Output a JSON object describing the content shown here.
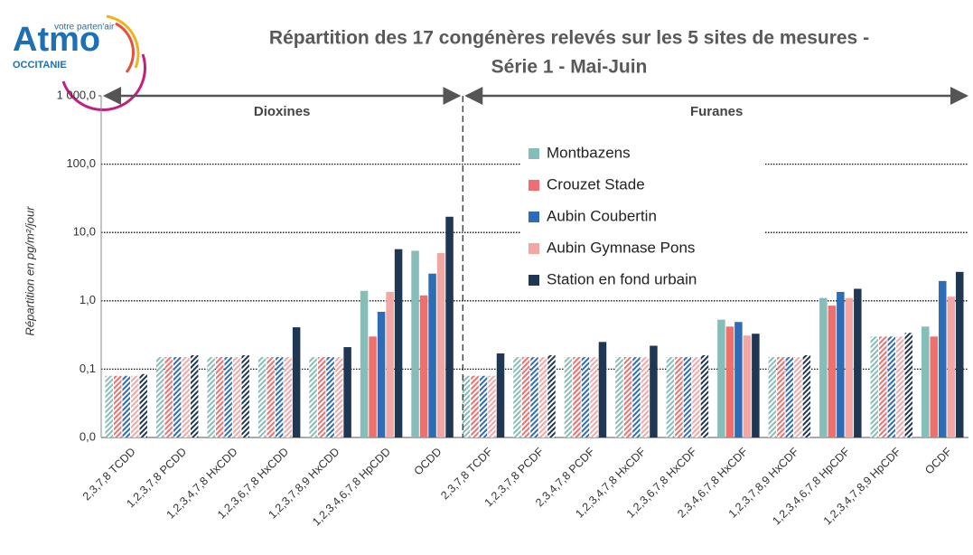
{
  "logo": {
    "name": "Atmo",
    "tagline": "votre parten'air",
    "region": "OCCITANIE"
  },
  "chart_data": {
    "type": "bar",
    "title": [
      "Répartition des 17 congénères relevés sur les 5 sites de mesures -",
      "Série 1 - Mai-Juin"
    ],
    "y_label": "Répartition en pg/m²/jour",
    "annotations": [
      "Dioxines",
      "Furanes"
    ],
    "log_scale": true,
    "grid": true,
    "legend": "center right",
    "ylim": [
      0.01,
      1000
    ],
    "yticks": [
      {
        "value": 0.01,
        "label": "0,0"
      },
      {
        "value": 0.1,
        "label": "0,1"
      },
      {
        "value": 1,
        "label": "1,0"
      },
      {
        "value": 10,
        "label": "10,0"
      },
      {
        "value": 100,
        "label": "100,0"
      },
      {
        "value": 1000,
        "label": "1 000,0"
      }
    ],
    "categories": [
      "2,3,7,8 TCDD",
      "1,2,3,7,8 PCDD",
      "1,2,3,4,7,8 HxCDD",
      "1,2,3,6,7,8 HxCDD",
      "1,2,3,7,8,9 HxCDD",
      "1,2,3,4,6,7,8 HpCDD",
      "OCDD",
      "2,3,7,8 TCDF",
      "1,2,3,7,8 PCDF",
      "2,3,4,7,8 PCDF",
      "1,2,3,4,7,8 HxCDF",
      "1,2,3,6,7,8 HxCDF",
      "2,3,4,6,7,8 HxCDF",
      "1,2,3,7,8,9 HxCDF",
      "1,2,3,4,6,7,8 HpCDF",
      "1,2,3,4,7,8,9 HpCDF",
      "OCDF"
    ],
    "series": [
      {
        "name": "Montbazens",
        "color": "#86bdb8",
        "values": [
          0.08,
          0.15,
          0.15,
          0.15,
          0.15,
          1.4,
          5.4,
          0.08,
          0.15,
          0.15,
          0.15,
          0.15,
          0.53,
          0.15,
          1.1,
          0.3,
          0.42
        ],
        "hatched": [
          true,
          true,
          true,
          true,
          true,
          false,
          false,
          true,
          true,
          true,
          true,
          true,
          false,
          true,
          false,
          true,
          false
        ]
      },
      {
        "name": "Crouzet Stade",
        "color": "#ef6f6c",
        "values": [
          0.08,
          0.15,
          0.15,
          0.15,
          0.15,
          0.3,
          1.2,
          0.08,
          0.15,
          0.15,
          0.15,
          0.15,
          0.42,
          0.15,
          0.85,
          0.3,
          0.3
        ],
        "hatched": [
          true,
          true,
          true,
          true,
          true,
          false,
          false,
          true,
          true,
          true,
          true,
          true,
          false,
          true,
          false,
          true,
          false
        ]
      },
      {
        "name": "Aubin Coubertin",
        "color": "#2e6db5",
        "values": [
          0.08,
          0.15,
          0.15,
          0.15,
          0.15,
          0.69,
          2.5,
          0.08,
          0.15,
          0.15,
          0.15,
          0.15,
          0.49,
          0.15,
          1.35,
          0.3,
          1.95
        ],
        "hatched": [
          true,
          true,
          true,
          true,
          true,
          false,
          false,
          true,
          true,
          true,
          true,
          true,
          false,
          true,
          false,
          true,
          false
        ]
      },
      {
        "name": "Aubin Gymnase Pons",
        "color": "#f2a7a5",
        "values": [
          0.08,
          0.15,
          0.15,
          0.15,
          0.15,
          1.35,
          5.0,
          0.08,
          0.15,
          0.15,
          0.15,
          0.15,
          0.31,
          0.15,
          1.1,
          0.3,
          1.15
        ],
        "hatched": [
          true,
          true,
          true,
          true,
          true,
          false,
          false,
          true,
          true,
          true,
          true,
          true,
          false,
          true,
          false,
          true,
          false
        ]
      },
      {
        "name": "Station en fond urbain",
        "color": "#1f3752",
        "values": [
          0.085,
          0.16,
          0.16,
          0.41,
          0.21,
          5.7,
          17,
          0.17,
          0.16,
          0.25,
          0.22,
          0.16,
          0.33,
          0.16,
          1.5,
          0.34,
          2.65
        ],
        "hatched": [
          true,
          true,
          true,
          false,
          false,
          false,
          false,
          false,
          true,
          false,
          false,
          true,
          false,
          true,
          false,
          true,
          false
        ]
      }
    ]
  }
}
